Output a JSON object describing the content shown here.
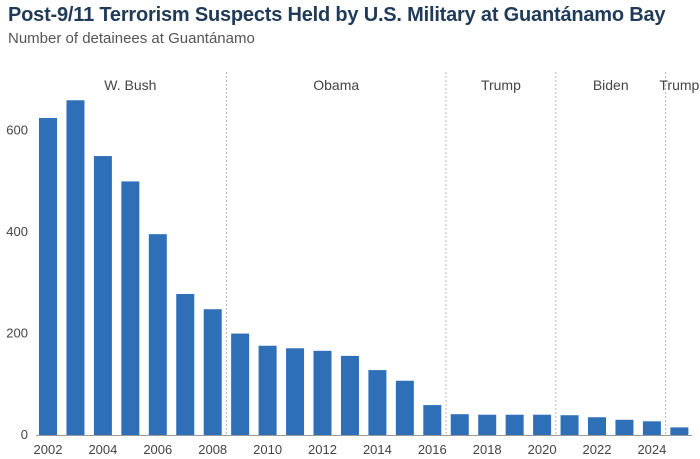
{
  "title": "Post-9/11 Terrorism Suspects Held by U.S. Military at Guantánamo Bay",
  "subtitle": "Number of detainees at Guantánamo",
  "colors": {
    "bar": "#2e6fb7",
    "axis": "#9a9a9a",
    "divider": "#b5b5b5",
    "title": "#1f3b57"
  },
  "chart_data": {
    "type": "bar",
    "x": [
      2002,
      2003,
      2004,
      2005,
      2006,
      2007,
      2008,
      2009,
      2010,
      2011,
      2012,
      2013,
      2014,
      2015,
      2016,
      2017,
      2018,
      2019,
      2020,
      2021,
      2022,
      2023,
      2024,
      2025
    ],
    "values": [
      625,
      660,
      550,
      500,
      396,
      278,
      248,
      200,
      176,
      171,
      166,
      156,
      128,
      107,
      59,
      41,
      40,
      40,
      40,
      39,
      35,
      30,
      27,
      15
    ],
    "x_tick_labels": [
      "2002",
      "2004",
      "2006",
      "2008",
      "2010",
      "2012",
      "2014",
      "2016",
      "2018",
      "2020",
      "2022",
      "2024"
    ],
    "y_tick_labels": [
      "0",
      "200",
      "400",
      "600"
    ],
    "ylim": [
      0,
      700
    ],
    "xlabel": "",
    "ylabel": "",
    "grid": false,
    "era_labels": [
      "W. Bush",
      "Obama",
      "Trump",
      "Biden",
      "Trump"
    ],
    "era_dividers_between_years": [
      [
        2008,
        2009
      ],
      [
        2016,
        2017
      ],
      [
        2020,
        2021
      ],
      [
        2024,
        2025
      ]
    ]
  }
}
